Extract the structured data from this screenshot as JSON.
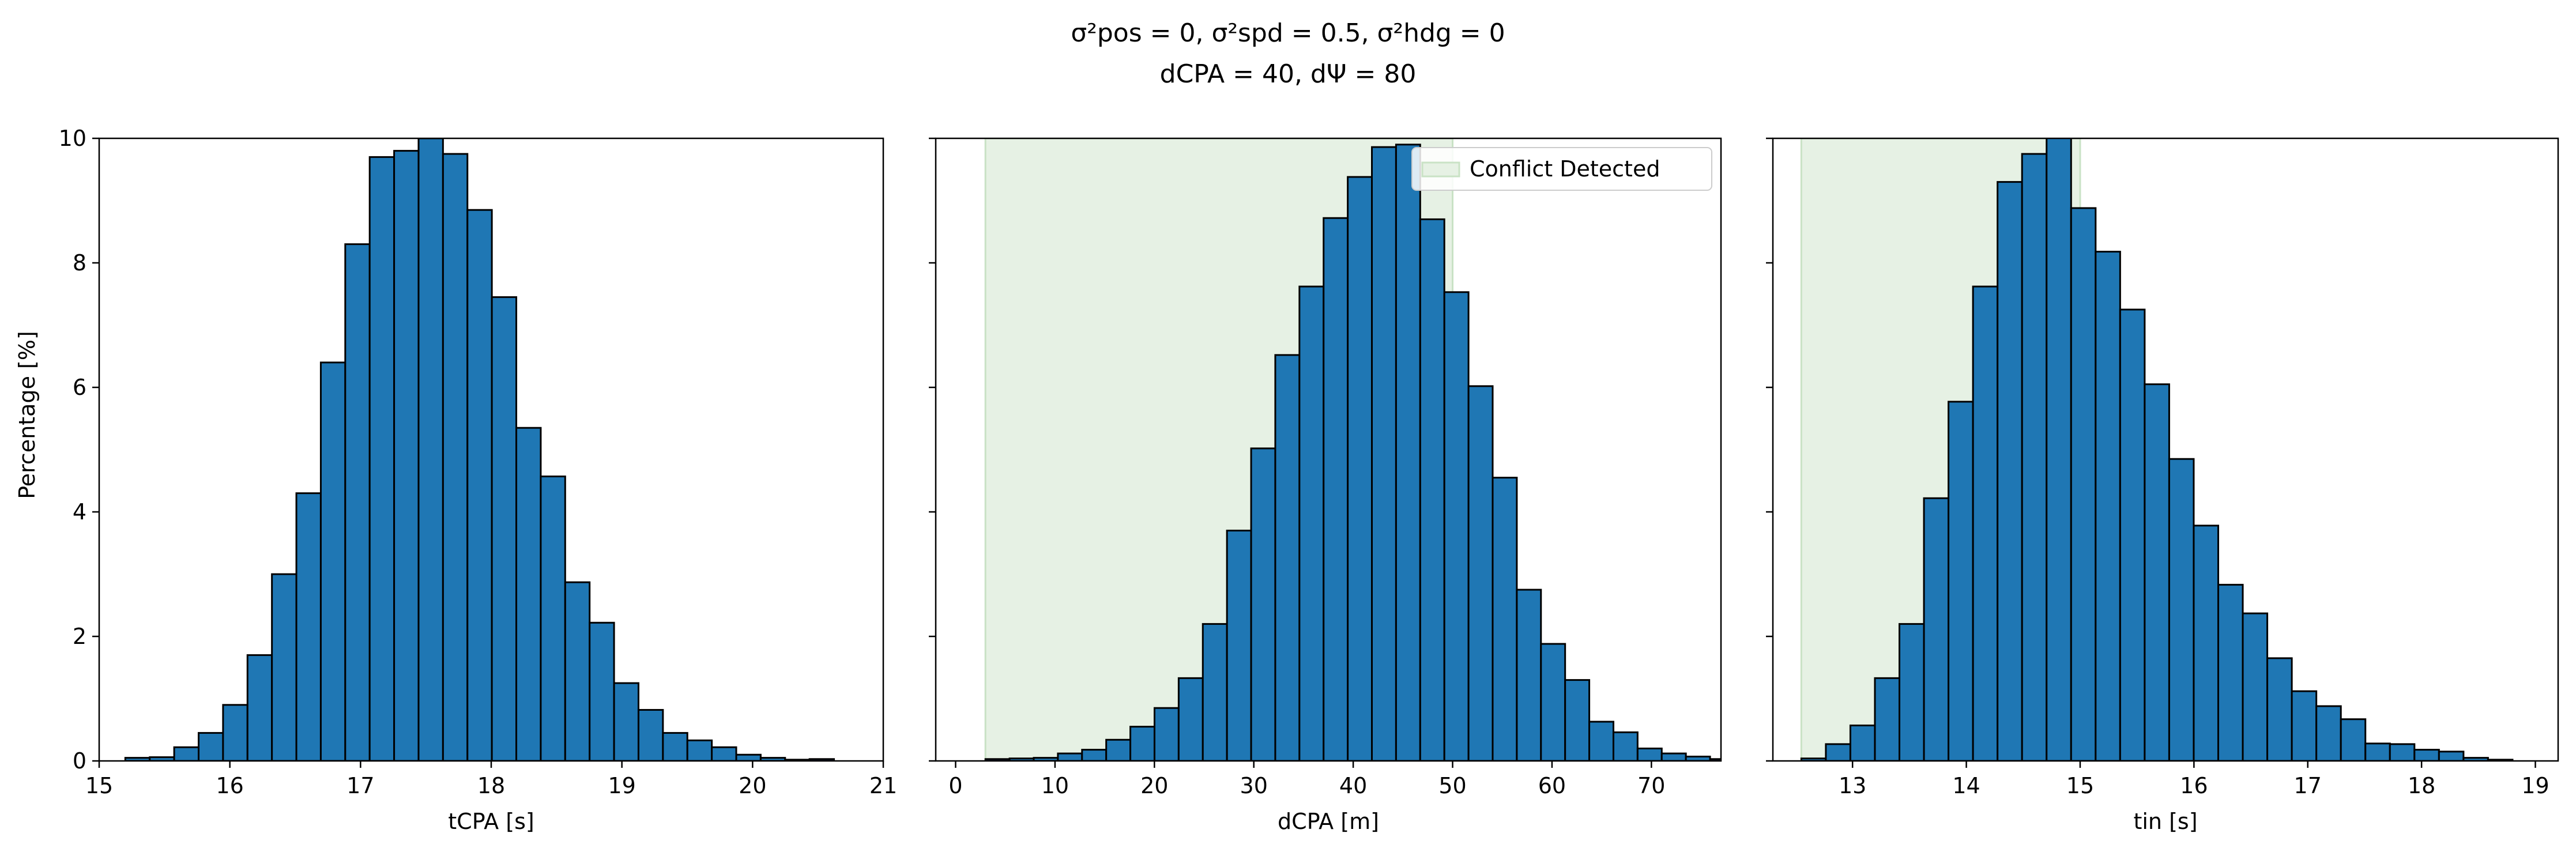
{
  "figure": {
    "title_line1": "σ²pos = 0, σ²spd = 0.5, σ²hdg = 0",
    "title_line2": "dCPA = 40, dΨ = 80",
    "ylabel": "Percentage [%]",
    "colors": {
      "bar_fill": "#1f77b4",
      "bar_edge": "#000000",
      "conflict_fill": "#e6f1e4",
      "conflict_edge": "#c9e2c5"
    }
  },
  "chart_data": [
    {
      "type": "bar",
      "subtype": "histogram",
      "xlabel": "tCPA [s]",
      "ylabel": "Percentage [%]",
      "xlim": [
        15.0,
        21.0
      ],
      "ylim": [
        0,
        10
      ],
      "xticks": [
        15,
        16,
        17,
        18,
        19,
        20,
        21
      ],
      "yticks": [
        0,
        2,
        4,
        6,
        8,
        10
      ],
      "bin_start": 15.2,
      "bin_width": 0.187,
      "values": [
        0.05,
        0.06,
        0.22,
        0.45,
        0.9,
        1.7,
        3.0,
        4.3,
        6.4,
        8.3,
        9.7,
        9.8,
        10.0,
        9.75,
        8.85,
        7.45,
        5.35,
        4.57,
        2.87,
        2.22,
        1.25,
        0.82,
        0.45,
        0.33,
        0.22,
        0.1,
        0.05,
        0.02,
        0.03,
        0.0
      ]
    },
    {
      "type": "bar",
      "subtype": "histogram",
      "xlabel": "dCPA [m]",
      "xlim": [
        -2,
        77
      ],
      "ylim": [
        0,
        10
      ],
      "xticks": [
        0,
        10,
        20,
        30,
        40,
        50,
        60,
        70
      ],
      "yticks": [
        0,
        2,
        4,
        6,
        8,
        10
      ],
      "bin_start": 3.0,
      "bin_width": 2.43,
      "legend": {
        "label": "Conflict Detected",
        "position": "top-right"
      },
      "shaded_region": {
        "label": "Conflict Detected",
        "x": [
          3,
          50
        ]
      },
      "values": [
        0.03,
        0.04,
        0.05,
        0.12,
        0.18,
        0.34,
        0.55,
        0.85,
        1.33,
        2.2,
        3.7,
        5.02,
        6.52,
        7.62,
        8.72,
        9.38,
        9.86,
        9.9,
        8.7,
        7.53,
        6.02,
        4.55,
        2.75,
        1.88,
        1.3,
        0.63,
        0.46,
        0.2,
        0.12,
        0.07,
        0.03
      ]
    },
    {
      "type": "bar",
      "subtype": "histogram",
      "xlabel": "tin [s]",
      "xlim": [
        12.3,
        19.2
      ],
      "ylim": [
        0,
        10
      ],
      "xticks": [
        13,
        14,
        15,
        16,
        17,
        18,
        19
      ],
      "yticks": [
        0,
        2,
        4,
        6,
        8,
        10
      ],
      "bin_start": 12.55,
      "bin_width": 0.2155,
      "shaded_region": {
        "label": "Conflict Detected",
        "x": [
          12.55,
          15.0
        ]
      },
      "values": [
        0.04,
        0.27,
        0.57,
        1.33,
        2.2,
        4.22,
        5.77,
        7.62,
        9.3,
        9.75,
        10.1,
        8.88,
        8.18,
        7.25,
        6.05,
        4.85,
        3.78,
        2.83,
        2.37,
        1.65,
        1.12,
        0.88,
        0.67,
        0.28,
        0.27,
        0.18,
        0.15,
        0.05,
        0.02,
        0.0
      ]
    }
  ]
}
